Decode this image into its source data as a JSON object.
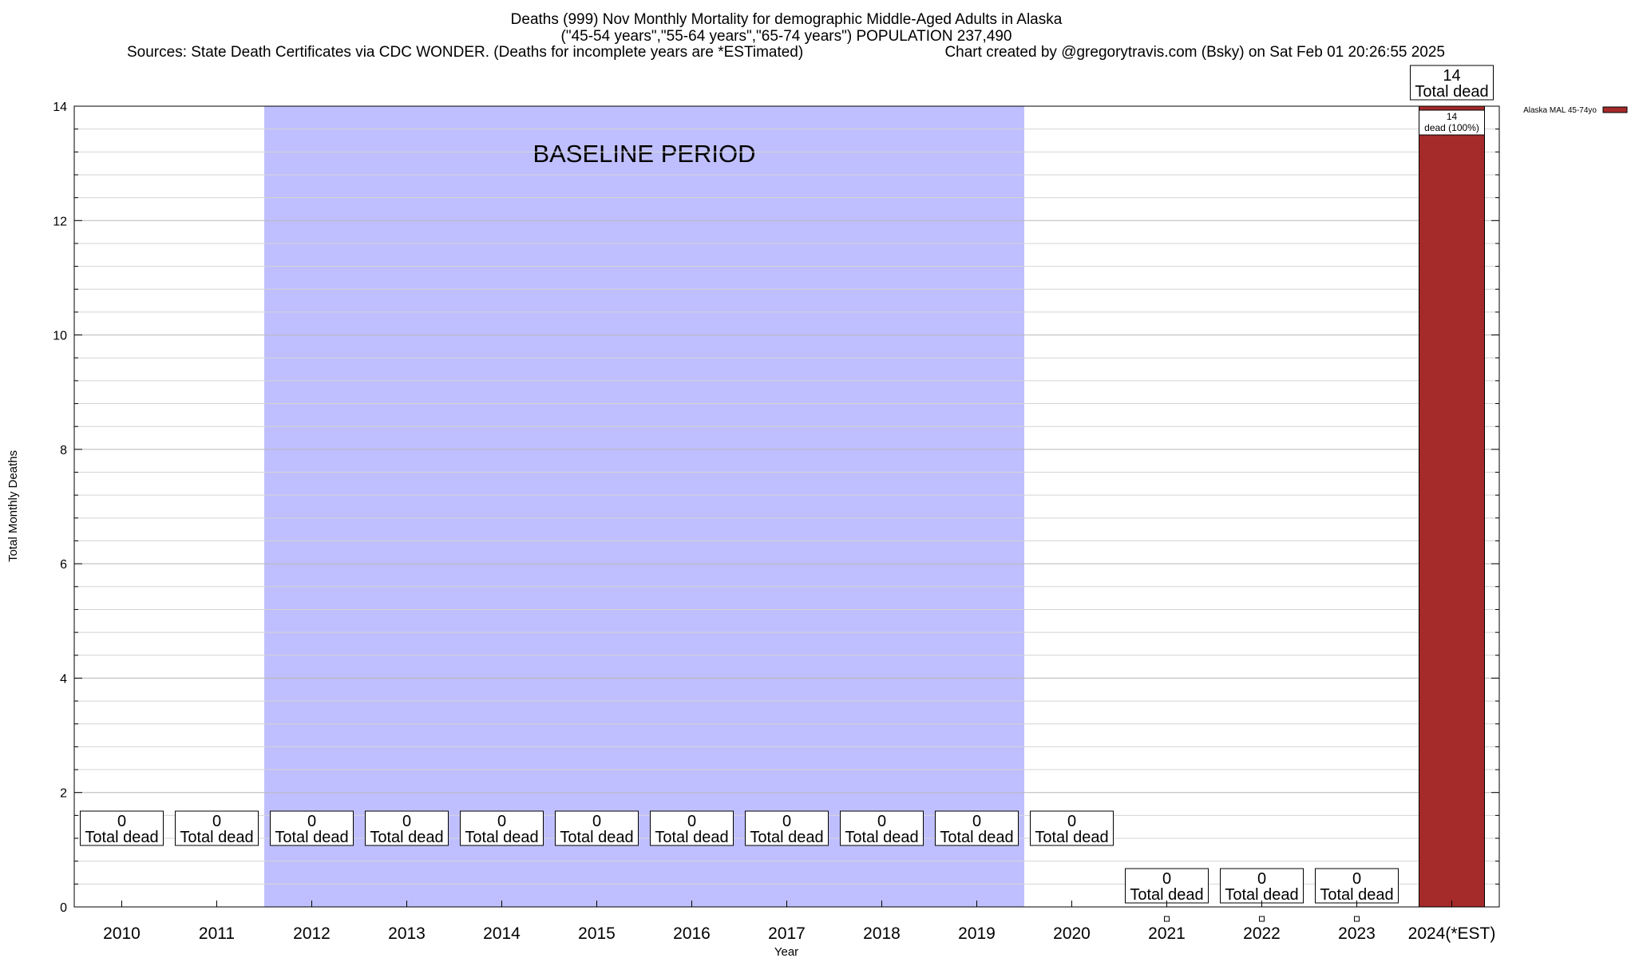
{
  "header": {
    "title_line1": "Deaths (999) Nov Monthly Mortality for demographic Middle-Aged Adults in Alaska",
    "title_line2": "(\"45-54 years\",\"55-64 years\",\"65-74 years\") POPULATION 237,490",
    "sources": "Sources: State Death Certificates via CDC WONDER. (Deaths for incomplete years are *ESTimated)",
    "credit": "Chart created by @gregorytravis.com (Bsky) on Sat Feb 01 20:26:55 2025"
  },
  "chart_data": {
    "type": "bar",
    "categories": [
      "2010",
      "2011",
      "2012",
      "2013",
      "2014",
      "2015",
      "2016",
      "2017",
      "2018",
      "2019",
      "2020",
      "2021",
      "2022",
      "2023",
      "2024(*EST)"
    ],
    "series": [
      {
        "name": "Alaska MAL 45-74yo",
        "color": "#a52a2a",
        "values": [
          0,
          0,
          0,
          0,
          0,
          0,
          0,
          0,
          0,
          0,
          0,
          0,
          0,
          0,
          14
        ]
      }
    ],
    "total_labels": [
      {
        "value": "0",
        "text": "Total dead"
      },
      {
        "value": "0",
        "text": "Total dead"
      },
      {
        "value": "0",
        "text": "Total dead"
      },
      {
        "value": "0",
        "text": "Total dead"
      },
      {
        "value": "0",
        "text": "Total dead"
      },
      {
        "value": "0",
        "text": "Total dead"
      },
      {
        "value": "0",
        "text": "Total dead"
      },
      {
        "value": "0",
        "text": "Total dead"
      },
      {
        "value": "0",
        "text": "Total dead"
      },
      {
        "value": "0",
        "text": "Total dead"
      },
      {
        "value": "0",
        "text": "Total dead"
      },
      {
        "value": "0",
        "text": "Total dead"
      },
      {
        "value": "0",
        "text": "Total dead"
      },
      {
        "value": "0",
        "text": "Total dead"
      },
      {
        "value": "14",
        "text": "Total dead"
      }
    ],
    "segment_label": {
      "value": "14",
      "text": "dead (100%)"
    },
    "xlabel": "Year",
    "ylabel": "Total Monthly Deaths",
    "ylim": [
      0,
      14
    ],
    "yticks": [
      0,
      2,
      4,
      6,
      8,
      10,
      12,
      14
    ],
    "grid": true,
    "baseline": {
      "label": "BASELINE PERIOD",
      "from": "2012",
      "to": "2019",
      "color": "#bfbfff"
    },
    "legend": {
      "placement": "top-right",
      "label": "Alaska MAL 45-74yo"
    }
  }
}
